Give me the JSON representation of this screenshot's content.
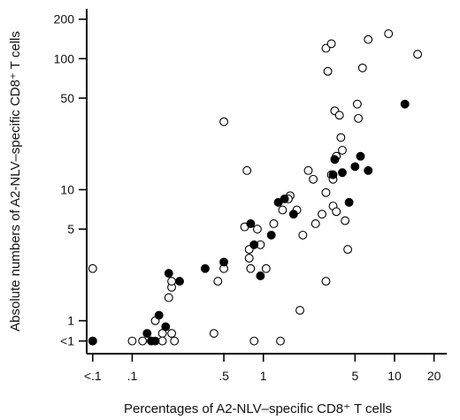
{
  "chart_data": {
    "type": "scatter",
    "x_scale": "log",
    "y_scale": "log",
    "xlabel": "Percentages of  A2-NLV–specific CD8⁺ T cells",
    "ylabel": "Absolute numbers of A2-NLV–specific CD8⁺ T cells",
    "xlim": [
      0.045,
      25
    ],
    "ylim": [
      0.56,
      240
    ],
    "x_ticks": [
      {
        "value": 0.05,
        "label": "<.1"
      },
      {
        "value": 0.1,
        "label": ".1"
      },
      {
        "value": 0.5,
        "label": ".5"
      },
      {
        "value": 1,
        "label": "1"
      },
      {
        "value": 5,
        "label": "5"
      },
      {
        "value": 10,
        "label": "10"
      },
      {
        "value": 20,
        "label": "20"
      }
    ],
    "y_ticks": [
      {
        "value": 0.7,
        "label": "<1"
      },
      {
        "value": 1,
        "label": "1"
      },
      {
        "value": 5,
        "label": "5"
      },
      {
        "value": 10,
        "label": "10"
      },
      {
        "value": 50,
        "label": "50"
      },
      {
        "value": 100,
        "label": "100"
      },
      {
        "value": 200,
        "label": "200"
      }
    ],
    "grid": false,
    "legend": "none",
    "series": [
      {
        "marker": "open-circle",
        "points": [
          [
            0.05,
            2.5
          ],
          [
            0.05,
            0.7
          ],
          [
            0.1,
            0.7
          ],
          [
            0.12,
            0.7
          ],
          [
            0.14,
            0.7
          ],
          [
            0.15,
            1.0
          ],
          [
            0.17,
            0.8
          ],
          [
            0.17,
            0.7
          ],
          [
            0.19,
            1.5
          ],
          [
            0.2,
            1.8
          ],
          [
            0.2,
            2.0
          ],
          [
            0.2,
            0.8
          ],
          [
            0.21,
            0.7
          ],
          [
            0.42,
            0.8
          ],
          [
            0.45,
            2.0
          ],
          [
            0.5,
            33
          ],
          [
            0.5,
            2.5
          ],
          [
            0.72,
            5.2
          ],
          [
            0.75,
            14
          ],
          [
            0.78,
            3.5
          ],
          [
            0.78,
            3.0
          ],
          [
            0.8,
            2.5
          ],
          [
            0.85,
            0.7
          ],
          [
            0.9,
            5.0
          ],
          [
            0.95,
            3.8
          ],
          [
            1.05,
            2.5
          ],
          [
            1.2,
            5.5
          ],
          [
            1.35,
            0.7
          ],
          [
            1.4,
            7.0
          ],
          [
            1.6,
            9.0
          ],
          [
            1.55,
            8.5
          ],
          [
            1.8,
            7.0
          ],
          [
            1.9,
            1.2
          ],
          [
            2.0,
            4.5
          ],
          [
            2.2,
            14
          ],
          [
            2.4,
            12
          ],
          [
            2.5,
            5.5
          ],
          [
            2.8,
            6.5
          ],
          [
            3.0,
            9.5
          ],
          [
            3.0,
            120
          ],
          [
            3.1,
            80
          ],
          [
            3.3,
            130
          ],
          [
            3.3,
            13
          ],
          [
            3.4,
            12
          ],
          [
            3.4,
            7.5
          ],
          [
            3.5,
            40
          ],
          [
            3.6,
            18
          ],
          [
            3.6,
            6.8
          ],
          [
            3.8,
            37
          ],
          [
            3.9,
            25
          ],
          [
            4.0,
            20
          ],
          [
            4.2,
            5.8
          ],
          [
            4.4,
            3.5
          ],
          [
            3.0,
            2.0
          ],
          [
            5.2,
            45
          ],
          [
            5.3,
            35
          ],
          [
            5.7,
            85
          ],
          [
            6.3,
            140
          ],
          [
            9.0,
            155
          ],
          [
            15.0,
            108
          ]
        ]
      },
      {
        "marker": "filled-circle",
        "points": [
          [
            0.05,
            0.7
          ],
          [
            0.13,
            0.8
          ],
          [
            0.14,
            0.7
          ],
          [
            0.15,
            0.7
          ],
          [
            0.16,
            1.1
          ],
          [
            0.18,
            0.9
          ],
          [
            0.19,
            2.3
          ],
          [
            0.23,
            2.0
          ],
          [
            0.36,
            2.5
          ],
          [
            0.5,
            2.8
          ],
          [
            0.8,
            5.5
          ],
          [
            0.85,
            3.8
          ],
          [
            0.95,
            2.2
          ],
          [
            1.15,
            4.5
          ],
          [
            1.3,
            8.0
          ],
          [
            1.45,
            8.5
          ],
          [
            1.7,
            6.5
          ],
          [
            3.4,
            13
          ],
          [
            3.5,
            17
          ],
          [
            4.0,
            13.5
          ],
          [
            4.5,
            8.0
          ],
          [
            5.0,
            15
          ],
          [
            5.5,
            18
          ],
          [
            6.3,
            14
          ],
          [
            12.0,
            45
          ]
        ]
      }
    ]
  }
}
